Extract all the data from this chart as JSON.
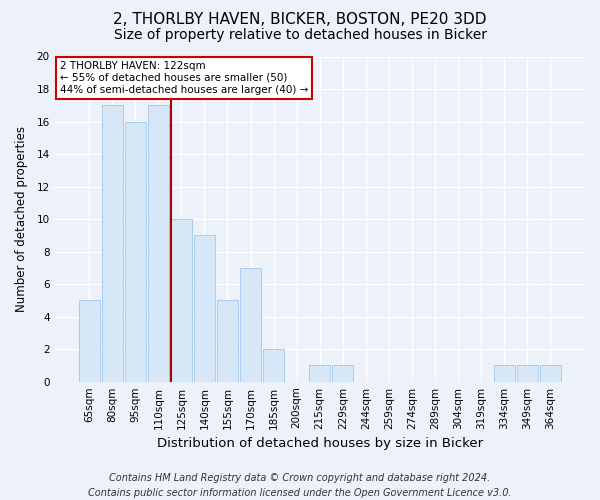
{
  "title1": "2, THORLBY HAVEN, BICKER, BOSTON, PE20 3DD",
  "title2": "Size of property relative to detached houses in Bicker",
  "xlabel": "Distribution of detached houses by size in Bicker",
  "ylabel": "Number of detached properties",
  "bar_labels": [
    "65sqm",
    "80sqm",
    "95sqm",
    "110sqm",
    "125sqm",
    "140sqm",
    "155sqm",
    "170sqm",
    "185sqm",
    "200sqm",
    "215sqm",
    "229sqm",
    "244sqm",
    "259sqm",
    "274sqm",
    "289sqm",
    "304sqm",
    "319sqm",
    "334sqm",
    "349sqm",
    "364sqm"
  ],
  "bar_values": [
    5,
    17,
    16,
    17,
    10,
    9,
    5,
    7,
    2,
    0,
    1,
    1,
    0,
    0,
    0,
    0,
    0,
    0,
    1,
    1,
    1
  ],
  "bar_color": "#d6e8f7",
  "bar_edge_color": "#aaccee",
  "highlight_line_color": "#aa0000",
  "ylim": [
    0,
    20
  ],
  "yticks": [
    0,
    2,
    4,
    6,
    8,
    10,
    12,
    14,
    16,
    18,
    20
  ],
  "annotation_title": "2 THORLBY HAVEN: 122sqm",
  "annotation_line1": "← 55% of detached houses are smaller (50)",
  "annotation_line2": "44% of semi-detached houses are larger (40) →",
  "annotation_box_color": "#ffffff",
  "annotation_box_edge": "#cc0000",
  "footer1": "Contains HM Land Registry data © Crown copyright and database right 2024.",
  "footer2": "Contains public sector information licensed under the Open Government Licence v3.0.",
  "background_color": "#edf2fa",
  "grid_color": "#ffffff",
  "title1_fontsize": 11,
  "title2_fontsize": 10,
  "xlabel_fontsize": 9.5,
  "ylabel_fontsize": 8.5,
  "tick_fontsize": 7.5,
  "footer_fontsize": 7,
  "highlight_bar_index": 4
}
